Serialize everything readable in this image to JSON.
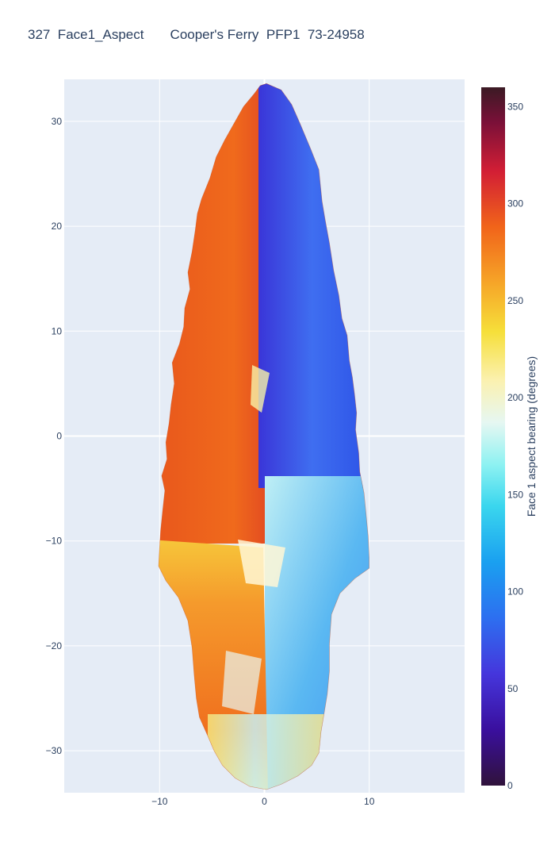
{
  "chart_data": {
    "type": "heatmap",
    "title": "327  Face1_Aspect       Cooper's Ferry  PFP1  73-24958",
    "xlabel": "",
    "ylabel": "",
    "xlim": [
      -19.1,
      19.1
    ],
    "ylim": [
      -34,
      34
    ],
    "x_ticks": [
      -10,
      0,
      10
    ],
    "x_tick_labels": [
      "−10",
      "0",
      "10"
    ],
    "y_ticks": [
      -30,
      -20,
      -10,
      0,
      10,
      20,
      30
    ],
    "y_tick_labels": [
      "−30",
      "−20",
      "−10",
      "0",
      "10",
      "20",
      "30"
    ],
    "grid": true,
    "colorbar": {
      "title": "Face 1 aspect bearing (degrees)",
      "range": [
        0,
        360
      ],
      "ticks": [
        0,
        50,
        100,
        150,
        200,
        250,
        300,
        350
      ],
      "colorscale": [
        [
          0,
          "#30123b"
        ],
        [
          0.08,
          "#3a0f9e"
        ],
        [
          0.16,
          "#4536dc"
        ],
        [
          0.24,
          "#2d6ff0"
        ],
        [
          0.32,
          "#1aa0f0"
        ],
        [
          0.4,
          "#3ad6ee"
        ],
        [
          0.46,
          "#8ef2f2"
        ],
        [
          0.52,
          "#e6f7f2"
        ],
        [
          0.58,
          "#fbf1b0"
        ],
        [
          0.65,
          "#f6df3a"
        ],
        [
          0.72,
          "#f6a528"
        ],
        [
          0.8,
          "#f1641a"
        ],
        [
          0.88,
          "#d21e35"
        ],
        [
          0.95,
          "#7a1038"
        ],
        [
          1,
          "#3b1a24"
        ]
      ]
    },
    "regions": [
      {
        "name": "left-blade",
        "aspect_deg": 290
      },
      {
        "name": "right-blade",
        "aspect_deg": 75
      },
      {
        "name": "left-stem",
        "aspect_deg": 255
      },
      {
        "name": "right-stem",
        "aspect_deg": 125
      },
      {
        "name": "base",
        "aspect_deg": 215
      }
    ]
  }
}
